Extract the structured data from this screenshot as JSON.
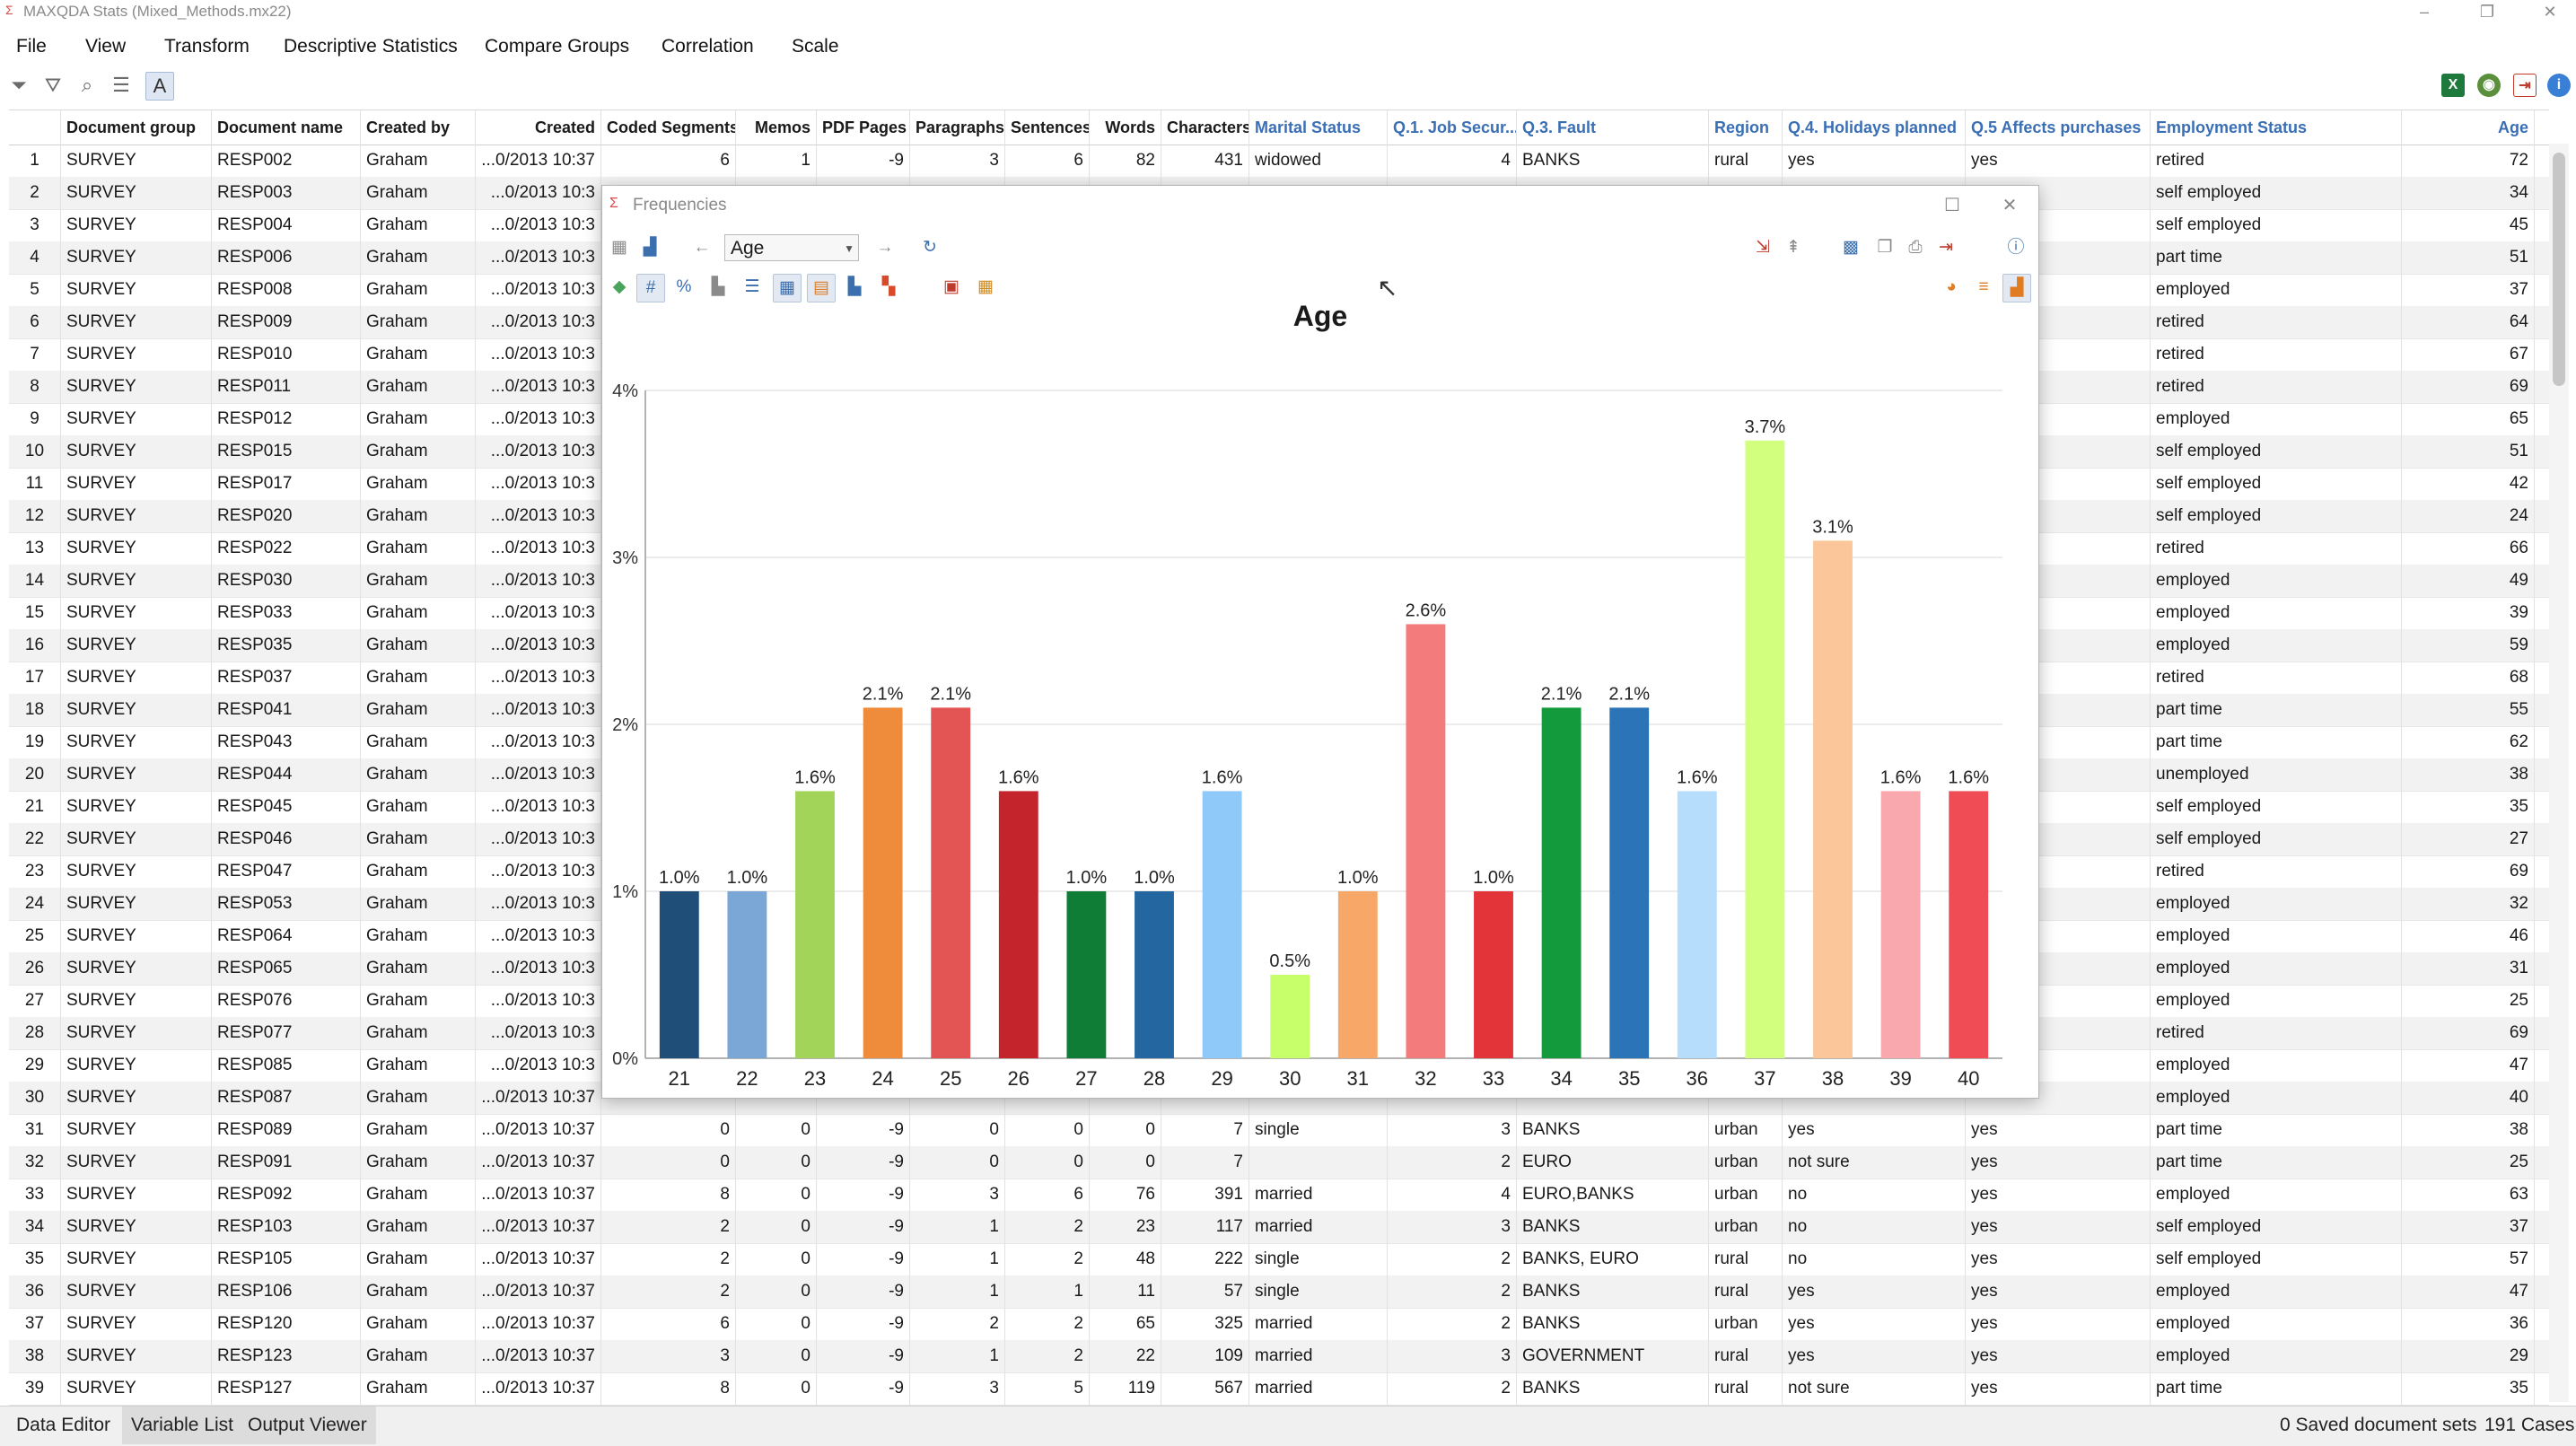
{
  "app": {
    "title": "MAXQDA Stats (Mixed_Methods.mx22)",
    "window_controls": [
      "–",
      "❐",
      "✕"
    ]
  },
  "menu": [
    "File",
    "View",
    "Transform",
    "Descriptive Statistics",
    "Compare Groups",
    "Correlation",
    "Scale"
  ],
  "table": {
    "columns": [
      {
        "label": "Document group",
        "type": "doc"
      },
      {
        "label": "Document name",
        "type": "doc"
      },
      {
        "label": "Created by",
        "type": "doc"
      },
      {
        "label": "Created",
        "type": "doc"
      },
      {
        "label": "Coded Segments",
        "type": "doc"
      },
      {
        "label": "Memos",
        "type": "doc"
      },
      {
        "label": "PDF Pages",
        "type": "doc"
      },
      {
        "label": "Paragraphs",
        "type": "doc"
      },
      {
        "label": "Sentences",
        "type": "doc"
      },
      {
        "label": "Words",
        "type": "doc"
      },
      {
        "label": "Characters",
        "type": "doc"
      },
      {
        "label": "Marital Status",
        "type": "var"
      },
      {
        "label": "Q.1. Job Secur...",
        "type": "var"
      },
      {
        "label": "Q.3. Fault",
        "type": "var"
      },
      {
        "label": "Region",
        "type": "var"
      },
      {
        "label": "Q.4. Holidays planned",
        "type": "var"
      },
      {
        "label": "Q.5 Affects purchases",
        "type": "var"
      },
      {
        "label": "Employment Status",
        "type": "var"
      },
      {
        "label": "Age",
        "type": "var"
      }
    ],
    "rows": [
      [
        "1",
        "SURVEY",
        "RESP002",
        "Graham",
        "...0/2013 10:37",
        "6",
        "1",
        "-9",
        "3",
        "6",
        "82",
        "431",
        "widowed",
        "4",
        "BANKS",
        "rural",
        "yes",
        "yes",
        "retired",
        "72"
      ],
      [
        "2",
        "SURVEY",
        "RESP003",
        "Graham",
        "...0/2013 10:3",
        "",
        "",
        "",
        "",
        "",
        "",
        "",
        "",
        "",
        "",
        "",
        "",
        "",
        "self employed",
        "34"
      ],
      [
        "3",
        "SURVEY",
        "RESP004",
        "Graham",
        "...0/2013 10:3",
        "",
        "",
        "",
        "",
        "",
        "",
        "",
        "",
        "",
        "",
        "",
        "",
        "",
        "self employed",
        "45"
      ],
      [
        "4",
        "SURVEY",
        "RESP006",
        "Graham",
        "...0/2013 10:3",
        "",
        "",
        "",
        "",
        "",
        "",
        "",
        "",
        "",
        "",
        "",
        "",
        "",
        "part time",
        "51"
      ],
      [
        "5",
        "SURVEY",
        "RESP008",
        "Graham",
        "...0/2013 10:3",
        "",
        "",
        "",
        "",
        "",
        "",
        "",
        "",
        "",
        "",
        "",
        "",
        "",
        "employed",
        "37"
      ],
      [
        "6",
        "SURVEY",
        "RESP009",
        "Graham",
        "...0/2013 10:3",
        "",
        "",
        "",
        "",
        "",
        "",
        "",
        "",
        "",
        "",
        "",
        "",
        "",
        "retired",
        "64"
      ],
      [
        "7",
        "SURVEY",
        "RESP010",
        "Graham",
        "...0/2013 10:3",
        "",
        "",
        "",
        "",
        "",
        "",
        "",
        "",
        "",
        "",
        "",
        "",
        "",
        "retired",
        "67"
      ],
      [
        "8",
        "SURVEY",
        "RESP011",
        "Graham",
        "...0/2013 10:3",
        "",
        "",
        "",
        "",
        "",
        "",
        "",
        "",
        "",
        "",
        "",
        "",
        "",
        "retired",
        "69"
      ],
      [
        "9",
        "SURVEY",
        "RESP012",
        "Graham",
        "...0/2013 10:3",
        "",
        "",
        "",
        "",
        "",
        "",
        "",
        "",
        "",
        "",
        "",
        "",
        "",
        "employed",
        "65"
      ],
      [
        "10",
        "SURVEY",
        "RESP015",
        "Graham",
        "...0/2013 10:3",
        "",
        "",
        "",
        "",
        "",
        "",
        "",
        "",
        "",
        "",
        "",
        "",
        "",
        "self employed",
        "51"
      ],
      [
        "11",
        "SURVEY",
        "RESP017",
        "Graham",
        "...0/2013 10:3",
        "",
        "",
        "",
        "",
        "",
        "",
        "",
        "",
        "",
        "",
        "",
        "",
        "",
        "self employed",
        "42"
      ],
      [
        "12",
        "SURVEY",
        "RESP020",
        "Graham",
        "...0/2013 10:3",
        "",
        "",
        "",
        "",
        "",
        "",
        "",
        "",
        "",
        "",
        "",
        "",
        "",
        "self employed",
        "24"
      ],
      [
        "13",
        "SURVEY",
        "RESP022",
        "Graham",
        "...0/2013 10:3",
        "",
        "",
        "",
        "",
        "",
        "",
        "",
        "",
        "",
        "",
        "",
        "",
        "",
        "retired",
        "66"
      ],
      [
        "14",
        "SURVEY",
        "RESP030",
        "Graham",
        "...0/2013 10:3",
        "",
        "",
        "",
        "",
        "",
        "",
        "",
        "",
        "",
        "",
        "",
        "",
        "",
        "employed",
        "49"
      ],
      [
        "15",
        "SURVEY",
        "RESP033",
        "Graham",
        "...0/2013 10:3",
        "",
        "",
        "",
        "",
        "",
        "",
        "",
        "",
        "",
        "",
        "",
        "",
        "",
        "employed",
        "39"
      ],
      [
        "16",
        "SURVEY",
        "RESP035",
        "Graham",
        "...0/2013 10:3",
        "",
        "",
        "",
        "",
        "",
        "",
        "",
        "",
        "",
        "",
        "",
        "",
        "",
        "employed",
        "59"
      ],
      [
        "17",
        "SURVEY",
        "RESP037",
        "Graham",
        "...0/2013 10:3",
        "",
        "",
        "",
        "",
        "",
        "",
        "",
        "",
        "",
        "",
        "",
        "",
        "",
        "retired",
        "68"
      ],
      [
        "18",
        "SURVEY",
        "RESP041",
        "Graham",
        "...0/2013 10:3",
        "",
        "",
        "",
        "",
        "",
        "",
        "",
        "",
        "",
        "",
        "",
        "",
        "",
        "part time",
        "55"
      ],
      [
        "19",
        "SURVEY",
        "RESP043",
        "Graham",
        "...0/2013 10:3",
        "",
        "",
        "",
        "",
        "",
        "",
        "",
        "",
        "",
        "",
        "",
        "",
        "",
        "part time",
        "62"
      ],
      [
        "20",
        "SURVEY",
        "RESP044",
        "Graham",
        "...0/2013 10:3",
        "",
        "",
        "",
        "",
        "",
        "",
        "",
        "",
        "",
        "",
        "",
        "",
        "",
        "unemployed",
        "38"
      ],
      [
        "21",
        "SURVEY",
        "RESP045",
        "Graham",
        "...0/2013 10:3",
        "",
        "",
        "",
        "",
        "",
        "",
        "",
        "",
        "",
        "",
        "",
        "",
        "",
        "self employed",
        "35"
      ],
      [
        "22",
        "SURVEY",
        "RESP046",
        "Graham",
        "...0/2013 10:3",
        "",
        "",
        "",
        "",
        "",
        "",
        "",
        "",
        "",
        "",
        "",
        "",
        "",
        "self employed",
        "27"
      ],
      [
        "23",
        "SURVEY",
        "RESP047",
        "Graham",
        "...0/2013 10:3",
        "",
        "",
        "",
        "",
        "",
        "",
        "",
        "",
        "",
        "",
        "",
        "",
        "",
        "retired",
        "69"
      ],
      [
        "24",
        "SURVEY",
        "RESP053",
        "Graham",
        "...0/2013 10:3",
        "",
        "",
        "",
        "",
        "",
        "",
        "",
        "",
        "",
        "",
        "",
        "",
        "",
        "employed",
        "32"
      ],
      [
        "25",
        "SURVEY",
        "RESP064",
        "Graham",
        "...0/2013 10:3",
        "",
        "",
        "",
        "",
        "",
        "",
        "",
        "",
        "",
        "",
        "",
        "",
        "",
        "employed",
        "46"
      ],
      [
        "26",
        "SURVEY",
        "RESP065",
        "Graham",
        "...0/2013 10:3",
        "",
        "",
        "",
        "",
        "",
        "",
        "",
        "",
        "",
        "",
        "",
        "",
        "",
        "employed",
        "31"
      ],
      [
        "27",
        "SURVEY",
        "RESP076",
        "Graham",
        "...0/2013 10:3",
        "",
        "",
        "",
        "",
        "",
        "",
        "",
        "",
        "",
        "",
        "",
        "",
        "",
        "employed",
        "25"
      ],
      [
        "28",
        "SURVEY",
        "RESP077",
        "Graham",
        "...0/2013 10:3",
        "",
        "",
        "",
        "",
        "",
        "",
        "",
        "",
        "",
        "",
        "",
        "",
        "",
        "retired",
        "69"
      ],
      [
        "29",
        "SURVEY",
        "RESP085",
        "Graham",
        "...0/2013 10:3",
        "",
        "",
        "",
        "",
        "",
        "",
        "",
        "",
        "",
        "",
        "",
        "",
        "",
        "employed",
        "47"
      ],
      [
        "30",
        "SURVEY",
        "RESP087",
        "Graham",
        "...0/2013 10:37",
        "",
        "",
        "",
        "",
        "",
        "",
        "",
        "",
        "",
        "",
        "",
        "",
        "",
        "employed",
        "40"
      ],
      [
        "31",
        "SURVEY",
        "RESP089",
        "Graham",
        "...0/2013 10:37",
        "0",
        "0",
        "-9",
        "0",
        "0",
        "0",
        "7",
        "single",
        "3",
        "BANKS",
        "urban",
        "yes",
        "yes",
        "part time",
        "38"
      ],
      [
        "32",
        "SURVEY",
        "RESP091",
        "Graham",
        "...0/2013 10:37",
        "0",
        "0",
        "-9",
        "0",
        "0",
        "0",
        "7",
        "",
        "2",
        "EURO",
        "urban",
        "not sure",
        "yes",
        "part time",
        "25"
      ],
      [
        "33",
        "SURVEY",
        "RESP092",
        "Graham",
        "...0/2013 10:37",
        "8",
        "0",
        "-9",
        "3",
        "6",
        "76",
        "391",
        "married",
        "4",
        "EURO,BANKS",
        "urban",
        "no",
        "yes",
        "employed",
        "63"
      ],
      [
        "34",
        "SURVEY",
        "RESP103",
        "Graham",
        "...0/2013 10:37",
        "2",
        "0",
        "-9",
        "1",
        "2",
        "23",
        "117",
        "married",
        "3",
        "BANKS",
        "urban",
        "no",
        "yes",
        "self employed",
        "37"
      ],
      [
        "35",
        "SURVEY",
        "RESP105",
        "Graham",
        "...0/2013 10:37",
        "2",
        "0",
        "-9",
        "1",
        "2",
        "48",
        "222",
        "single",
        "2",
        "BANKS, EURO",
        "rural",
        "no",
        "yes",
        "self employed",
        "57"
      ],
      [
        "36",
        "SURVEY",
        "RESP106",
        "Graham",
        "...0/2013 10:37",
        "2",
        "0",
        "-9",
        "1",
        "1",
        "11",
        "57",
        "single",
        "2",
        "BANKS",
        "rural",
        "yes",
        "yes",
        "employed",
        "47"
      ],
      [
        "37",
        "SURVEY",
        "RESP120",
        "Graham",
        "...0/2013 10:37",
        "6",
        "0",
        "-9",
        "2",
        "2",
        "65",
        "325",
        "married",
        "2",
        "BANKS",
        "urban",
        "yes",
        "yes",
        "employed",
        "36"
      ],
      [
        "38",
        "SURVEY",
        "RESP123",
        "Graham",
        "...0/2013 10:37",
        "3",
        "0",
        "-9",
        "1",
        "2",
        "22",
        "109",
        "married",
        "3",
        "GOVERNMENT",
        "rural",
        "yes",
        "yes",
        "employed",
        "29"
      ],
      [
        "39",
        "SURVEY",
        "RESP127",
        "Graham",
        "...0/2013 10:37",
        "8",
        "0",
        "-9",
        "3",
        "5",
        "119",
        "567",
        "married",
        "2",
        "BANKS",
        "rural",
        "not sure",
        "yes",
        "part time",
        "35"
      ]
    ]
  },
  "statusbar": {
    "tabs": [
      "Data Editor",
      "Variable List",
      "Output Viewer"
    ],
    "saved_sets": "0 Saved document sets",
    "cases": "191 Cases"
  },
  "frequencies": {
    "window_title": "Frequencies",
    "variable": "Age"
  },
  "chart_data": {
    "type": "bar",
    "title": "Age",
    "xlabel": "",
    "ylabel": "",
    "ylim": [
      0,
      4
    ],
    "yticks": [
      "0%",
      "1%",
      "2%",
      "3%",
      "4%"
    ],
    "grid": true,
    "categories": [
      "21",
      "22",
      "23",
      "24",
      "25",
      "26",
      "27",
      "28",
      "29",
      "30",
      "31",
      "32",
      "33",
      "34",
      "35",
      "36",
      "37",
      "38",
      "39",
      "40"
    ],
    "values": [
      1.0,
      1.0,
      1.6,
      2.1,
      2.1,
      1.6,
      1.0,
      1.0,
      1.6,
      0.5,
      1.0,
      2.6,
      1.0,
      2.1,
      2.1,
      1.6,
      3.7,
      3.1,
      1.6,
      1.6
    ],
    "labels": [
      "1.0%",
      "1.0%",
      "1.6%",
      "2.1%",
      "2.1%",
      "1.6%",
      "1.0%",
      "1.0%",
      "1.6%",
      "0.5%",
      "1.0%",
      "2.6%",
      "1.0%",
      "2.1%",
      "2.1%",
      "1.6%",
      "3.7%",
      "3.1%",
      "1.6%",
      "1.6%"
    ],
    "colors": [
      "#1f4e79",
      "#7aa7d6",
      "#a3d45a",
      "#ef8c3c",
      "#e35454",
      "#c4242c",
      "#0f7d35",
      "#2466a0",
      "#8ec9f9",
      "#c6ff6a",
      "#f7a868",
      "#f47b7b",
      "#e3343a",
      "#129a3c",
      "#2b74b8",
      "#b7ddfc",
      "#d2ff7e",
      "#fbc79a",
      "#f9a8ae",
      "#ef4c56"
    ]
  }
}
